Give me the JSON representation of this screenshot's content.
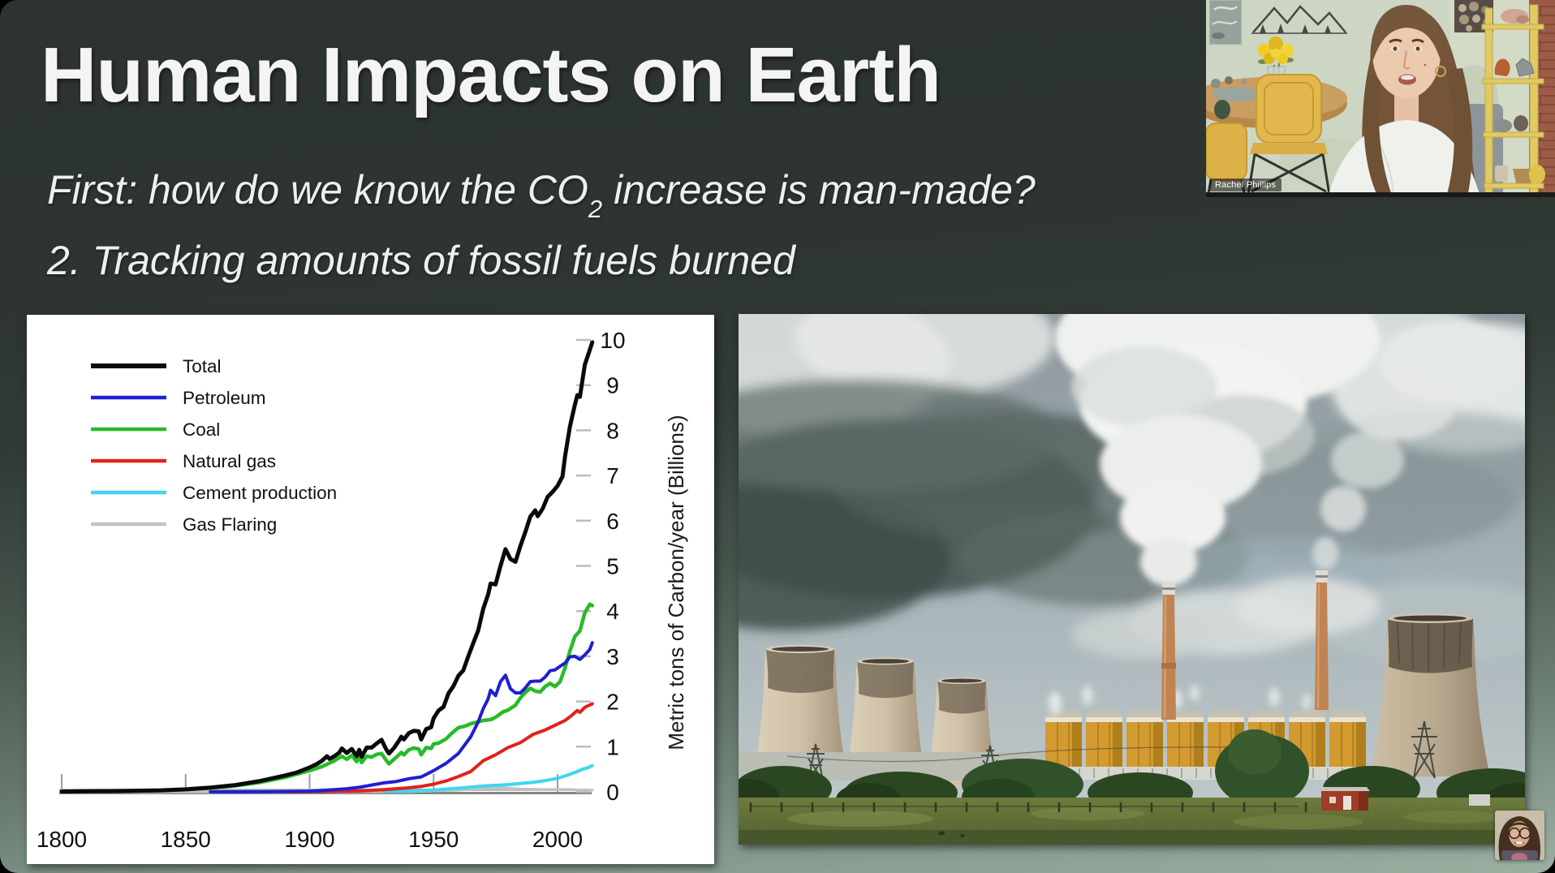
{
  "slide": {
    "title": "Human Impacts on Earth",
    "subtitle_prefix": "First: how do we know the CO",
    "subtitle_sub": "2",
    "subtitle_suffix": " increase is man-made?",
    "line2": "2. Tracking amounts of fossil fuels burned"
  },
  "webcam": {
    "participant_name": "Rachel Phillips"
  },
  "photo": {
    "alt": "Coal-fired power station with cooling towers, smokestacks and steam plumes over green fields"
  },
  "colors": {
    "slide_top": "#2c3330",
    "slide_bottom": "#9ab0a1",
    "panel_bg": "#ffffff",
    "text": "#f4f4f2"
  },
  "chart_data": {
    "type": "line",
    "title": "",
    "xlabel": "",
    "ylabel": "Metric tons of Carbon/year (Billions)",
    "xlim": [
      1800,
      2014
    ],
    "ylim": [
      0,
      10
    ],
    "x_ticks": [
      1800,
      1850,
      1900,
      1950,
      2000
    ],
    "y_ticks": [
      0,
      1,
      2,
      3,
      4,
      5,
      6,
      7,
      8,
      9,
      10
    ],
    "grid": false,
    "legend_position": "top-left",
    "series": [
      {
        "name": "Total",
        "color": "#0a0a0a",
        "width": 5,
        "points": [
          [
            1800,
            0.008
          ],
          [
            1810,
            0.012
          ],
          [
            1820,
            0.016
          ],
          [
            1830,
            0.025
          ],
          [
            1840,
            0.035
          ],
          [
            1850,
            0.055
          ],
          [
            1860,
            0.095
          ],
          [
            1870,
            0.15
          ],
          [
            1880,
            0.24
          ],
          [
            1890,
            0.36
          ],
          [
            1895,
            0.43
          ],
          [
            1900,
            0.54
          ],
          [
            1903,
            0.62
          ],
          [
            1905,
            0.69
          ],
          [
            1907,
            0.79
          ],
          [
            1908,
            0.73
          ],
          [
            1910,
            0.79
          ],
          [
            1912,
            0.87
          ],
          [
            1913,
            0.96
          ],
          [
            1915,
            0.86
          ],
          [
            1917,
            0.95
          ],
          [
            1919,
            0.79
          ],
          [
            1920,
            0.93
          ],
          [
            1921,
            0.78
          ],
          [
            1923,
            0.98
          ],
          [
            1925,
            0.98
          ],
          [
            1927,
            1.07
          ],
          [
            1929,
            1.15
          ],
          [
            1931,
            0.93
          ],
          [
            1932,
            0.85
          ],
          [
            1934,
            0.97
          ],
          [
            1936,
            1.13
          ],
          [
            1937,
            1.22
          ],
          [
            1938,
            1.16
          ],
          [
            1940,
            1.3
          ],
          [
            1942,
            1.35
          ],
          [
            1944,
            1.34
          ],
          [
            1945,
            1.16
          ],
          [
            1947,
            1.39
          ],
          [
            1949,
            1.43
          ],
          [
            1950,
            1.63
          ],
          [
            1952,
            1.8
          ],
          [
            1954,
            1.88
          ],
          [
            1956,
            2.18
          ],
          [
            1958,
            2.34
          ],
          [
            1960,
            2.57
          ],
          [
            1962,
            2.69
          ],
          [
            1964,
            3.0
          ],
          [
            1966,
            3.29
          ],
          [
            1968,
            3.57
          ],
          [
            1970,
            4.05
          ],
          [
            1972,
            4.37
          ],
          [
            1973,
            4.61
          ],
          [
            1975,
            4.59
          ],
          [
            1977,
            5.0
          ],
          [
            1979,
            5.37
          ],
          [
            1981,
            5.15
          ],
          [
            1983,
            5.09
          ],
          [
            1985,
            5.44
          ],
          [
            1987,
            5.75
          ],
          [
            1989,
            6.09
          ],
          [
            1991,
            6.23
          ],
          [
            1992,
            6.1
          ],
          [
            1994,
            6.27
          ],
          [
            1996,
            6.53
          ],
          [
            1998,
            6.64
          ],
          [
            2000,
            6.77
          ],
          [
            2002,
            6.98
          ],
          [
            2003,
            7.42
          ],
          [
            2005,
            8.09
          ],
          [
            2007,
            8.57
          ],
          [
            2008,
            8.78
          ],
          [
            2009,
            8.74
          ],
          [
            2011,
            9.45
          ],
          [
            2013,
            9.78
          ],
          [
            2014,
            9.95
          ]
        ]
      },
      {
        "name": "Petroleum",
        "color": "#1f1fd1",
        "width": 4,
        "points": [
          [
            1860,
            0.001
          ],
          [
            1880,
            0.004
          ],
          [
            1890,
            0.009
          ],
          [
            1900,
            0.016
          ],
          [
            1905,
            0.03
          ],
          [
            1910,
            0.05
          ],
          [
            1915,
            0.07
          ],
          [
            1920,
            0.1
          ],
          [
            1925,
            0.15
          ],
          [
            1930,
            0.2
          ],
          [
            1935,
            0.23
          ],
          [
            1940,
            0.29
          ],
          [
            1945,
            0.33
          ],
          [
            1950,
            0.47
          ],
          [
            1955,
            0.63
          ],
          [
            1960,
            0.85
          ],
          [
            1965,
            1.22
          ],
          [
            1968,
            1.55
          ],
          [
            1970,
            1.84
          ],
          [
            1972,
            2.06
          ],
          [
            1973,
            2.25
          ],
          [
            1975,
            2.13
          ],
          [
            1977,
            2.44
          ],
          [
            1979,
            2.58
          ],
          [
            1981,
            2.28
          ],
          [
            1983,
            2.19
          ],
          [
            1985,
            2.19
          ],
          [
            1987,
            2.3
          ],
          [
            1989,
            2.44
          ],
          [
            1991,
            2.45
          ],
          [
            1993,
            2.45
          ],
          [
            1995,
            2.54
          ],
          [
            1997,
            2.68
          ],
          [
            1999,
            2.7
          ],
          [
            2001,
            2.78
          ],
          [
            2003,
            2.85
          ],
          [
            2005,
            2.99
          ],
          [
            2007,
            3.0
          ],
          [
            2009,
            2.93
          ],
          [
            2011,
            3.03
          ],
          [
            2013,
            3.15
          ],
          [
            2014,
            3.3
          ]
        ]
      },
      {
        "name": "Coal",
        "color": "#27bb27",
        "width": 4.5,
        "points": [
          [
            1800,
            0.007
          ],
          [
            1810,
            0.01
          ],
          [
            1820,
            0.014
          ],
          [
            1830,
            0.022
          ],
          [
            1840,
            0.032
          ],
          [
            1850,
            0.05
          ],
          [
            1860,
            0.085
          ],
          [
            1870,
            0.135
          ],
          [
            1880,
            0.21
          ],
          [
            1890,
            0.32
          ],
          [
            1900,
            0.47
          ],
          [
            1905,
            0.56
          ],
          [
            1910,
            0.69
          ],
          [
            1913,
            0.79
          ],
          [
            1915,
            0.72
          ],
          [
            1917,
            0.81
          ],
          [
            1919,
            0.67
          ],
          [
            1920,
            0.77
          ],
          [
            1921,
            0.65
          ],
          [
            1923,
            0.79
          ],
          [
            1925,
            0.77
          ],
          [
            1927,
            0.83
          ],
          [
            1929,
            0.85
          ],
          [
            1931,
            0.69
          ],
          [
            1932,
            0.62
          ],
          [
            1934,
            0.72
          ],
          [
            1936,
            0.82
          ],
          [
            1937,
            0.87
          ],
          [
            1938,
            0.82
          ],
          [
            1940,
            0.93
          ],
          [
            1942,
            0.97
          ],
          [
            1944,
            0.95
          ],
          [
            1945,
            0.82
          ],
          [
            1947,
            0.98
          ],
          [
            1949,
            0.96
          ],
          [
            1950,
            1.06
          ],
          [
            1952,
            1.08
          ],
          [
            1955,
            1.17
          ],
          [
            1957,
            1.28
          ],
          [
            1960,
            1.42
          ],
          [
            1963,
            1.46
          ],
          [
            1965,
            1.51
          ],
          [
            1968,
            1.55
          ],
          [
            1970,
            1.58
          ],
          [
            1973,
            1.6
          ],
          [
            1975,
            1.65
          ],
          [
            1978,
            1.77
          ],
          [
            1980,
            1.81
          ],
          [
            1983,
            1.92
          ],
          [
            1985,
            2.08
          ],
          [
            1987,
            2.2
          ],
          [
            1989,
            2.29
          ],
          [
            1991,
            2.23
          ],
          [
            1993,
            2.21
          ],
          [
            1995,
            2.33
          ],
          [
            1997,
            2.4
          ],
          [
            1999,
            2.33
          ],
          [
            2001,
            2.44
          ],
          [
            2003,
            2.74
          ],
          [
            2005,
            3.12
          ],
          [
            2007,
            3.44
          ],
          [
            2009,
            3.56
          ],
          [
            2011,
            3.96
          ],
          [
            2013,
            4.15
          ],
          [
            2014,
            4.12
          ]
        ]
      },
      {
        "name": "Natural gas",
        "color": "#e32119",
        "width": 4,
        "points": [
          [
            1890,
            0.002
          ],
          [
            1900,
            0.006
          ],
          [
            1910,
            0.013
          ],
          [
            1920,
            0.02
          ],
          [
            1930,
            0.05
          ],
          [
            1940,
            0.09
          ],
          [
            1945,
            0.12
          ],
          [
            1950,
            0.17
          ],
          [
            1955,
            0.24
          ],
          [
            1960,
            0.34
          ],
          [
            1965,
            0.45
          ],
          [
            1970,
            0.69
          ],
          [
            1975,
            0.82
          ],
          [
            1980,
            0.98
          ],
          [
            1985,
            1.09
          ],
          [
            1990,
            1.27
          ],
          [
            1995,
            1.37
          ],
          [
            2000,
            1.5
          ],
          [
            2003,
            1.58
          ],
          [
            2005,
            1.66
          ],
          [
            2008,
            1.8
          ],
          [
            2009,
            1.76
          ],
          [
            2011,
            1.87
          ],
          [
            2014,
            1.95
          ]
        ]
      },
      {
        "name": "Cement production",
        "color": "#3fd6ef",
        "width": 4,
        "points": [
          [
            1930,
            0.01
          ],
          [
            1940,
            0.02
          ],
          [
            1950,
            0.04
          ],
          [
            1960,
            0.08
          ],
          [
            1970,
            0.13
          ],
          [
            1980,
            0.16
          ],
          [
            1990,
            0.21
          ],
          [
            1995,
            0.25
          ],
          [
            2000,
            0.3
          ],
          [
            2003,
            0.35
          ],
          [
            2005,
            0.39
          ],
          [
            2008,
            0.45
          ],
          [
            2010,
            0.5
          ],
          [
            2012,
            0.53
          ],
          [
            2014,
            0.58
          ]
        ]
      },
      {
        "name": "Gas Flaring",
        "color": "#c3c3c3",
        "width": 3.5,
        "points": [
          [
            1800,
            0.002
          ],
          [
            1900,
            0.003
          ],
          [
            1940,
            0.004
          ],
          [
            1950,
            0.02
          ],
          [
            1955,
            0.03
          ],
          [
            1960,
            0.04
          ],
          [
            1965,
            0.06
          ],
          [
            1970,
            0.09
          ],
          [
            1973,
            0.1
          ],
          [
            1976,
            0.09
          ],
          [
            1980,
            0.08
          ],
          [
            1985,
            0.06
          ],
          [
            1990,
            0.06
          ],
          [
            1995,
            0.05
          ],
          [
            2000,
            0.05
          ],
          [
            2005,
            0.05
          ],
          [
            2010,
            0.04
          ],
          [
            2014,
            0.04
          ]
        ]
      }
    ]
  }
}
